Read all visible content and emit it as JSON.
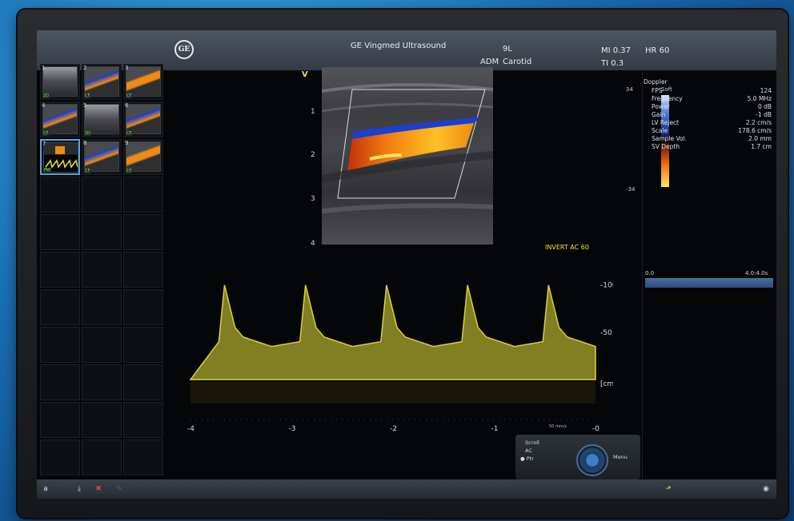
{
  "header": {
    "logo_text": "GE",
    "app_title": "GE Vingmed Ultrasound",
    "probe": "9L",
    "preset_prefix": "ADM",
    "preset": "Carotid",
    "mi": "MI 0.37",
    "ti": "TI 0.3",
    "hr": "HR 60"
  },
  "thumbnails": [
    {
      "num": "1",
      "tag": "2D"
    },
    {
      "num": "2",
      "tag": "CF"
    },
    {
      "num": "3",
      "tag": "CF"
    },
    {
      "num": "4",
      "tag": "CF"
    },
    {
      "num": "5",
      "tag": "2D"
    },
    {
      "num": "6",
      "tag": "CF"
    },
    {
      "num": "7",
      "tag": "PW"
    },
    {
      "num": "8",
      "tag": "CF"
    },
    {
      "num": "9",
      "tag": "CF"
    }
  ],
  "image": {
    "v_label": "V",
    "depth_ticks": [
      "1",
      "2",
      "3",
      "4"
    ],
    "color_scale_top": "34",
    "color_scale_bottom": "-34",
    "color_scale_title": "Soft"
  },
  "doppler": {
    "title": "Doppler",
    "params": [
      {
        "label": "FPS",
        "value": "124"
      },
      {
        "label": "Frequency",
        "value": "5.0 MHz"
      },
      {
        "label": "Power",
        "value": "0 dB"
      },
      {
        "label": "Gain",
        "value": "-1 dB"
      },
      {
        "label": "LV Reject",
        "value": "2.2 cm/s"
      },
      {
        "label": "Scale",
        "value": "178.6 cm/s"
      },
      {
        "label": "Sample Vol.",
        "value": "2.0 mm"
      },
      {
        "label": "SV Depth",
        "value": "1.7 cm"
      }
    ]
  },
  "cine": {
    "left": "0.0",
    "right": "4.0:4.0s"
  },
  "spectral": {
    "invert_label": "INVERT  AC 60",
    "y_ticks": [
      "100",
      "50"
    ],
    "y_unit": "[cm/s]",
    "x_ticks": [
      "-4",
      "-3",
      "-2",
      "-1",
      "-0"
    ],
    "sweep_label": "50 mm/s",
    "baseline_cm_s": 0,
    "peak_cm_s": 100,
    "diastolic_cm_s": 35,
    "beats": 5,
    "trace_color": "#e8e23a"
  },
  "controls": {
    "scroll": "Scroll",
    "ac": "AC",
    "ptr": "Ptr",
    "menu": "Menu"
  },
  "bottom_bar": {
    "a_button": "a"
  }
}
